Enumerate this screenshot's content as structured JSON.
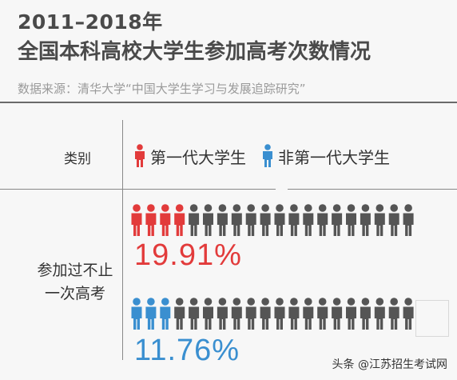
{
  "title": {
    "line1": "2011–2018年",
    "line2": "全国本科高校大学生参加高考次数情况"
  },
  "source": "数据来源：清华大学“中国大学生学习与发展追踪研究”",
  "category_header": "类别",
  "legend": [
    {
      "label": "第一代大学生",
      "color": "#e23b3b"
    },
    {
      "label": "非第一代大学生",
      "color": "#3a8fd0"
    }
  ],
  "row_label": "参加过不止\n一次高考",
  "colors": {
    "grey_icon": "#555555",
    "first_gen": "#e23b3b",
    "non_first_gen": "#3a8fd0"
  },
  "chart_data": {
    "type": "pictogram",
    "title": "2011–2018年 全国本科高校大学生参加高考次数情况",
    "category": "参加过不止一次高考",
    "series": [
      {
        "name": "第一代大学生",
        "value": 19.91,
        "label": "19.91%",
        "color": "#e23b3b",
        "highlighted_icons": 4
      },
      {
        "name": "非第一代大学生",
        "value": 11.76,
        "label": "11.76%",
        "color": "#3a8fd0",
        "highlighted_icons": 3
      }
    ],
    "icons_per_row": 20
  },
  "footer": "头条 @江苏招生考试网"
}
